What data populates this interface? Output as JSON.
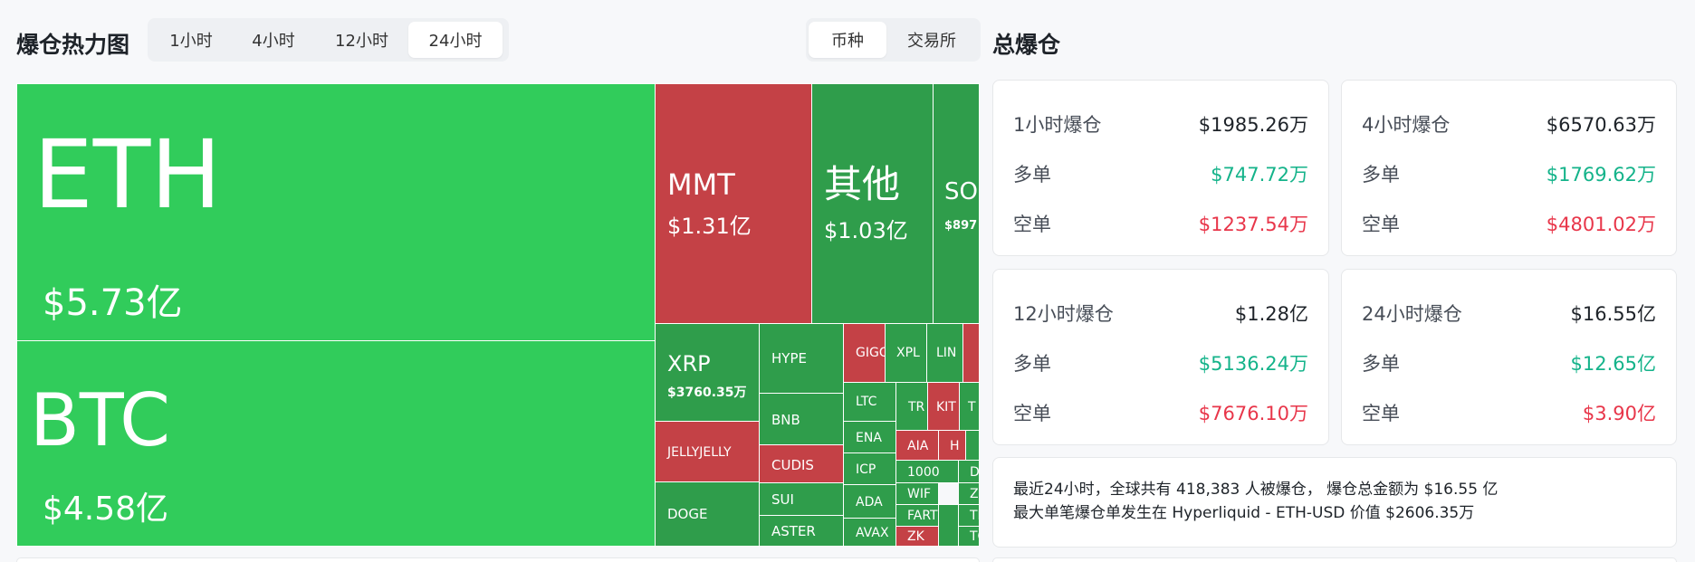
{
  "heatmap": {
    "title": "爆仓热力图",
    "time_tabs": [
      "1小时",
      "4小时",
      "12小时",
      "24小时"
    ],
    "active_time_tab": 3,
    "view_tabs": [
      "币种",
      "交易所"
    ],
    "active_view_tab": 0,
    "colors": {
      "bright_green": "#31cc5b",
      "dark_green": "#2f9d4b",
      "red": "#c44146"
    },
    "tiles": [
      {
        "symbol": "ETH",
        "value": "$5.73亿"
      },
      {
        "symbol": "BTC",
        "value": "$4.58亿"
      },
      {
        "symbol": "MMT",
        "value": "$1.31亿"
      },
      {
        "symbol": "其他",
        "value": "$1.03亿"
      },
      {
        "symbol": "SO",
        "value": "$897"
      },
      {
        "symbol": "XRP",
        "value": "$3760.35万"
      },
      {
        "symbol": "HYPE",
        "value": ""
      },
      {
        "symbol": "BNB",
        "value": ""
      },
      {
        "symbol": "JELLYJELLY",
        "value": ""
      },
      {
        "symbol": "CUDIS",
        "value": ""
      },
      {
        "symbol": "DOGE",
        "value": ""
      },
      {
        "symbol": "SUI",
        "value": ""
      },
      {
        "symbol": "ASTER",
        "value": ""
      },
      {
        "symbol": "GIGG",
        "value": ""
      },
      {
        "symbol": "XPL",
        "value": ""
      },
      {
        "symbol": "LIN",
        "value": ""
      },
      {
        "symbol": "",
        "value": ""
      },
      {
        "symbol": "LTC",
        "value": ""
      },
      {
        "symbol": "TR",
        "value": ""
      },
      {
        "symbol": "KIT",
        "value": ""
      },
      {
        "symbol": "T",
        "value": ""
      },
      {
        "symbol": "ENA",
        "value": ""
      },
      {
        "symbol": "AIA",
        "value": ""
      },
      {
        "symbol": "H",
        "value": ""
      },
      {
        "symbol": "",
        "value": ""
      },
      {
        "symbol": "ICP",
        "value": ""
      },
      {
        "symbol": "1000",
        "value": ""
      },
      {
        "symbol": "DOT",
        "value": ""
      },
      {
        "symbol": "WIF",
        "value": ""
      },
      {
        "symbol": "ZEN",
        "value": ""
      },
      {
        "symbol": "ADA",
        "value": ""
      },
      {
        "symbol": "FART",
        "value": ""
      },
      {
        "symbol": "TRU",
        "value": ""
      },
      {
        "symbol": "AVAX",
        "value": ""
      },
      {
        "symbol": "ZK",
        "value": ""
      },
      {
        "symbol": "TON",
        "value": ""
      },
      {
        "symbol": "",
        "value": ""
      }
    ]
  },
  "total": {
    "title": "总爆仓",
    "cards": [
      {
        "label": "1小时爆仓",
        "total": "$1985.26万",
        "long_label": "多单",
        "long": "$747.72万",
        "short_label": "空单",
        "short": "$1237.54万"
      },
      {
        "label": "4小时爆仓",
        "total": "$6570.63万",
        "long_label": "多单",
        "long": "$1769.62万",
        "short_label": "空单",
        "short": "$4801.02万"
      },
      {
        "label": "12小时爆仓",
        "total": "$1.28亿",
        "long_label": "多单",
        "long": "$5136.24万",
        "short_label": "空单",
        "short": "$7676.10万"
      },
      {
        "label": "24小时爆仓",
        "total": "$16.55亿",
        "long_label": "多单",
        "long": "$12.65亿",
        "short_label": "空单",
        "short": "$3.90亿"
      }
    ],
    "summary_line1": "最近24小时，全球共有 418,383 人被爆仓， 爆仓总金额为 $16.55 亿",
    "summary_line2": "最大单笔爆仓单发生在 Hyperliquid - ETH-USD 价值 $2606.35万"
  }
}
